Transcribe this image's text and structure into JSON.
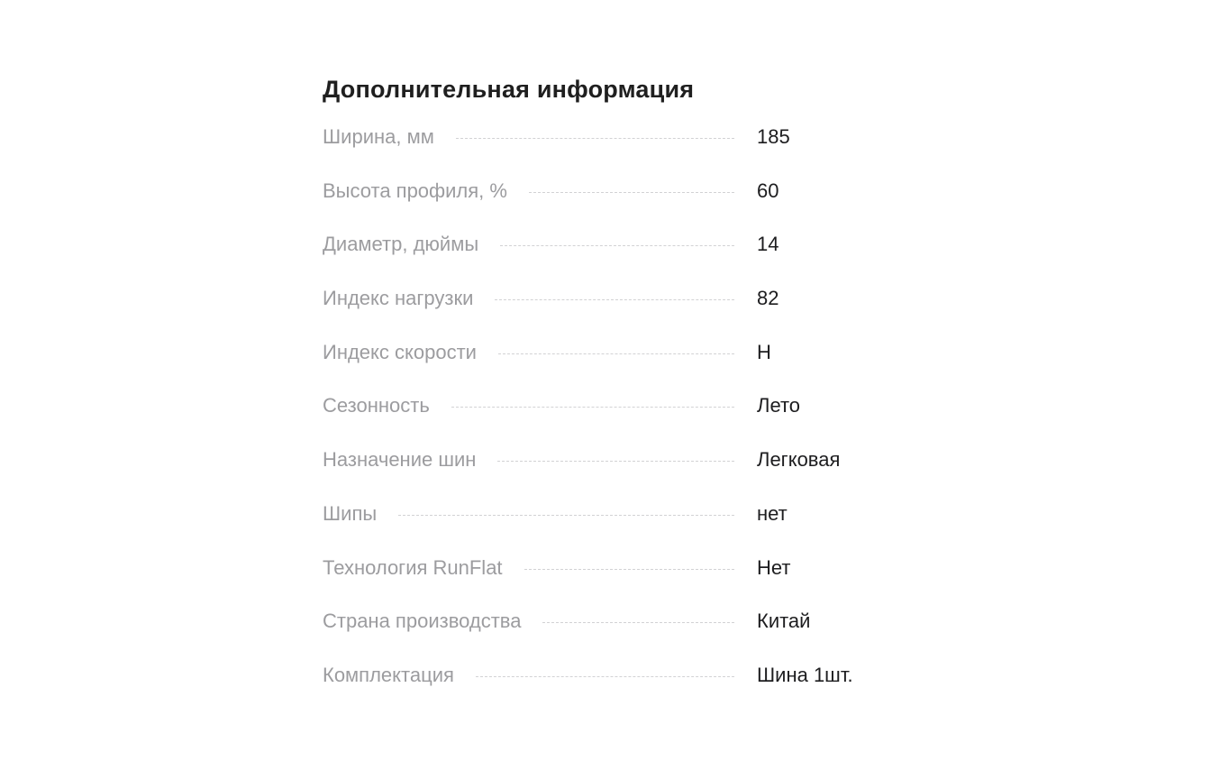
{
  "section": {
    "title": "Дополнительная информация",
    "rows": [
      {
        "label": "Ширина, мм",
        "value": "185"
      },
      {
        "label": "Высота профиля, %",
        "value": "60"
      },
      {
        "label": "Диаметр, дюймы",
        "value": "14"
      },
      {
        "label": "Индекс нагрузки",
        "value": "82"
      },
      {
        "label": "Индекс скорости",
        "value": "H"
      },
      {
        "label": "Сезонность",
        "value": "Лето"
      },
      {
        "label": "Назначение шин",
        "value": "Легковая"
      },
      {
        "label": "Шипы",
        "value": "нет"
      },
      {
        "label": "Технология RunFlat",
        "value": "Нет"
      },
      {
        "label": "Страна производства",
        "value": "Китай"
      },
      {
        "label": "Комплектация",
        "value": "Шина 1шт."
      }
    ]
  }
}
